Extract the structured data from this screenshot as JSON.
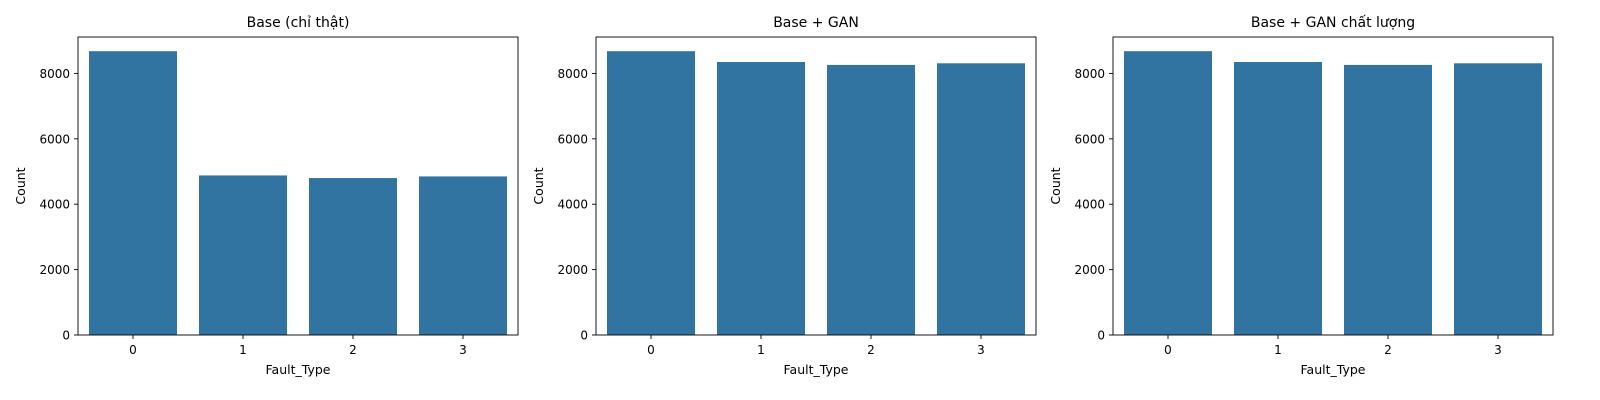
{
  "chart_data": [
    {
      "type": "bar",
      "title": "Base (chỉ thật)",
      "xlabel": "Fault_Type",
      "ylabel": "Count",
      "categories": [
        "0",
        "1",
        "2",
        "3"
      ],
      "values": [
        8680,
        4880,
        4800,
        4850
      ],
      "ylim": [
        0,
        9114
      ],
      "yticks": [
        0,
        2000,
        4000,
        6000,
        8000
      ],
      "grid": false,
      "color": "#3274a1"
    },
    {
      "type": "bar",
      "title": "Base + GAN",
      "xlabel": "Fault_Type",
      "ylabel": "Count",
      "categories": [
        "0",
        "1",
        "2",
        "3"
      ],
      "values": [
        8680,
        8350,
        8260,
        8310
      ],
      "ylim": [
        0,
        9114
      ],
      "yticks": [
        0,
        2000,
        4000,
        6000,
        8000
      ],
      "grid": false,
      "color": "#3274a1"
    },
    {
      "type": "bar",
      "title": "Base + GAN chất lượng",
      "xlabel": "Fault_Type",
      "ylabel": "Count",
      "categories": [
        "0",
        "1",
        "2",
        "3"
      ],
      "values": [
        8680,
        8350,
        8260,
        8310
      ],
      "ylim": [
        0,
        9114
      ],
      "yticks": [
        0,
        2000,
        4000,
        6000,
        8000
      ],
      "grid": false,
      "color": "#3274a1"
    }
  ]
}
